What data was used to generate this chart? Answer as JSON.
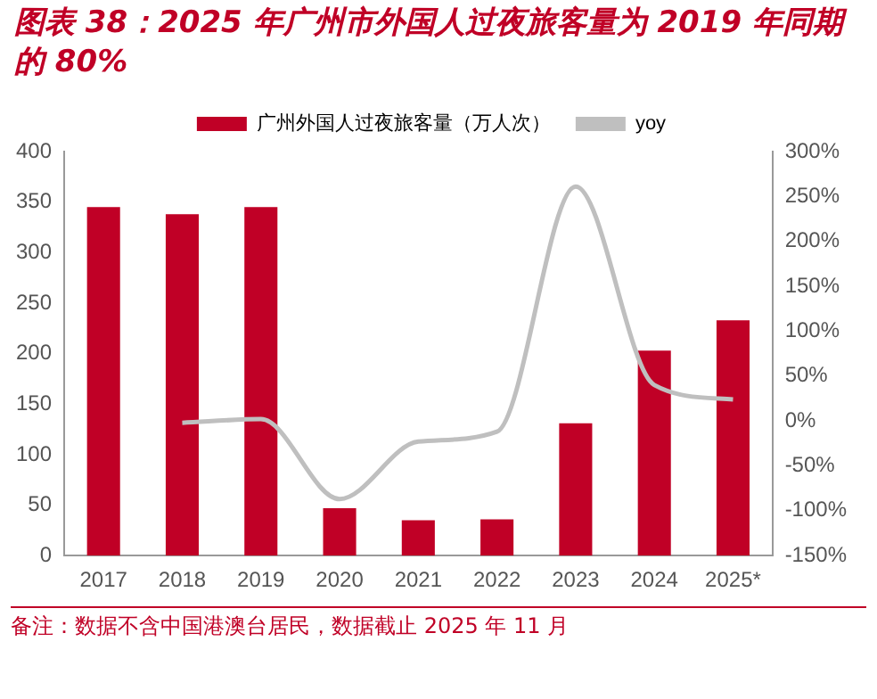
{
  "chart_data": {
    "type": "bar",
    "title": "图表 38：2025 年广州市外国人过夜旅客量为 2019 年同期的 80%",
    "categories": [
      "2017",
      "2018",
      "2019",
      "2020",
      "2021",
      "2022",
      "2023",
      "2024",
      "2025*"
    ],
    "series": [
      {
        "name": "广州外国人过夜旅客量（万人次）",
        "color": "#c00026",
        "values": [
          345,
          338,
          345,
          47,
          35,
          36,
          131,
          203,
          233
        ]
      },
      {
        "name": "yoy",
        "type": "line",
        "axis": "y2",
        "color": "#bfbfbf",
        "values": [
          null,
          -2,
          2,
          -87,
          -23,
          -12,
          261,
          40,
          24
        ]
      }
    ],
    "ylim": [
      0,
      400
    ],
    "yticks": [
      0,
      50,
      100,
      150,
      200,
      250,
      300,
      350,
      400
    ],
    "y2lim": [
      -150,
      300
    ],
    "y2ticks": [
      {
        "value": -150,
        "label": "-150%"
      },
      {
        "value": -100,
        "label": "-100%"
      },
      {
        "value": -50,
        "label": "-50%"
      },
      {
        "value": 0,
        "label": "0%"
      },
      {
        "value": 50,
        "label": "50%"
      },
      {
        "value": 100,
        "label": "100%"
      },
      {
        "value": 150,
        "label": "150%"
      },
      {
        "value": 200,
        "label": "200%"
      },
      {
        "value": 250,
        "label": "250%"
      },
      {
        "value": 300,
        "label": "300%"
      }
    ],
    "grid": false,
    "legend": "top",
    "marker": "none",
    "annotations": [
      "备注：数据不含中国港澳台居民，数据截止 2025 年 11 月"
    ]
  }
}
